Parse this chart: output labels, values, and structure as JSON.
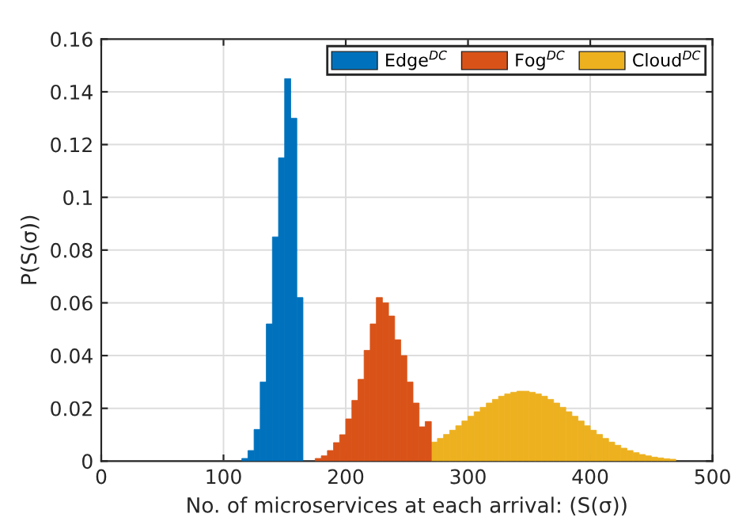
{
  "chart_data": {
    "type": "histogram",
    "xlabel": "No. of microservices at each arrival: (S(σ))",
    "ylabel": "P(S(σ))",
    "xlim": [
      0,
      500
    ],
    "xticks": [
      0,
      100,
      200,
      300,
      400,
      500
    ],
    "ylim": [
      0,
      0.16
    ],
    "yticks": [
      0,
      0.02,
      0.04,
      0.06,
      0.08,
      0.1,
      0.12,
      0.14,
      0.16
    ],
    "grid": true,
    "legend": "top right",
    "bins": [
      115,
      120,
      125,
      130,
      135,
      140,
      145,
      150,
      155,
      160,
      165,
      170,
      175,
      180,
      185,
      190,
      195,
      200,
      205,
      210,
      215,
      220,
      225,
      230,
      235,
      240,
      245,
      250,
      255,
      260,
      265,
      270,
      275,
      280,
      285,
      290,
      295,
      300,
      305,
      310,
      315,
      320,
      325,
      330,
      335,
      340,
      345,
      350,
      355,
      360,
      365,
      370,
      375,
      380,
      385,
      390,
      395,
      400,
      405,
      410,
      415,
      420,
      425,
      430,
      435,
      440,
      445,
      450,
      455,
      460,
      465,
      470
    ],
    "series": [
      {
        "name": "Edge$^{DC}$",
        "color": "#0072bd",
        "values": [
          0.001,
          0.004,
          0.012,
          0.03,
          0.052,
          0.085,
          0.115,
          0.145,
          0.13,
          0.062,
          null,
          null,
          null,
          null,
          null,
          null,
          null,
          null,
          null,
          null,
          null,
          null,
          null,
          null,
          null,
          null,
          null,
          null,
          null,
          null,
          null,
          null,
          null,
          null,
          null,
          null,
          null,
          null,
          null,
          null,
          null,
          null,
          null,
          null,
          null,
          null,
          null,
          null,
          null,
          null,
          null,
          null,
          null,
          null,
          null,
          null,
          null,
          null,
          null,
          null,
          null,
          null,
          null,
          null,
          null,
          null,
          null,
          null,
          null,
          null,
          null
        ]
      },
      {
        "name": "Fog$^{DC}$",
        "color": "#d95319",
        "values": [
          null,
          null,
          null,
          null,
          null,
          null,
          null,
          null,
          null,
          null,
          null,
          null,
          0.001,
          0.002,
          0.004,
          0.007,
          0.01,
          0.016,
          0.023,
          0.031,
          0.042,
          0.052,
          0.062,
          0.06,
          0.055,
          0.046,
          0.04,
          0.03,
          0.022,
          0.013,
          0.015,
          null,
          null,
          null,
          null,
          null,
          null,
          null,
          null,
          null,
          null,
          null,
          null,
          null,
          null,
          null,
          null,
          null,
          null,
          null,
          null,
          null,
          null,
          null,
          null,
          null,
          null,
          null,
          null,
          null,
          null,
          null,
          null,
          null,
          null,
          null,
          null,
          null,
          null,
          null,
          null
        ]
      },
      {
        "name": "Cloud$^{DC}$",
        "color": "#edb120",
        "values": [
          null,
          null,
          null,
          null,
          null,
          null,
          null,
          null,
          null,
          null,
          null,
          null,
          null,
          null,
          null,
          null,
          null,
          null,
          null,
          null,
          null,
          null,
          null,
          null,
          null,
          null,
          null,
          null,
          null,
          null,
          null,
          0.0072,
          0.0086,
          0.0101,
          0.0117,
          0.0134,
          0.0152,
          0.017,
          0.0187,
          0.0204,
          0.022,
          0.0234,
          0.0246,
          0.0255,
          0.0261,
          0.0265,
          0.0265,
          0.0261,
          0.0255,
          0.0246,
          0.0234,
          0.022,
          0.0204,
          0.0187,
          0.017,
          0.0152,
          0.0134,
          0.0117,
          0.0101,
          0.0086,
          0.0072,
          0.006,
          0.0049,
          0.004,
          0.0032,
          0.0025,
          0.002,
          0.0015,
          0.0012,
          0.0009,
          0.0007
        ]
      }
    ]
  }
}
